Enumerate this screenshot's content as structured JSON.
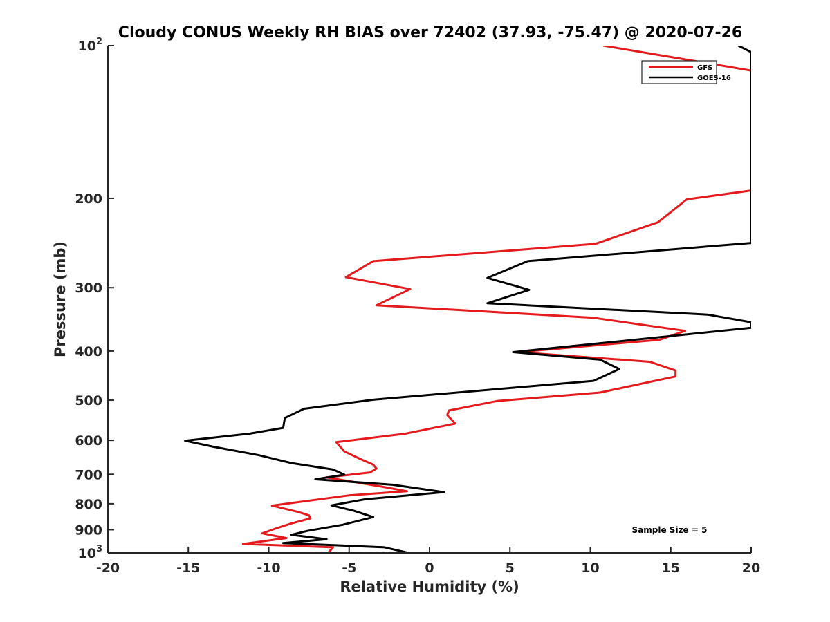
{
  "chart_data": {
    "type": "line",
    "title": "Cloudy CONUS Weekly RH BIAS over 72402 (37.93, -75.47) @ 2020-07-26",
    "xlabel": "Relative Humidity (%)",
    "ylabel": "Pressure (mb)",
    "xlim": [
      -20,
      20
    ],
    "ylim": [
      100,
      1000
    ],
    "y_scale": "log",
    "y_reversed": true,
    "grid": false,
    "legend_position": "top-right",
    "annotation": "Sample Size = 5",
    "x_ticks": [
      "-20",
      "-15",
      "-10",
      "-5",
      "0",
      "5",
      "10",
      "15",
      "20"
    ],
    "y_tick_values": [
      100,
      200,
      300,
      400,
      500,
      600,
      700,
      800,
      900,
      1000
    ],
    "y_tick_labels": {
      "t100": {
        "base": "10",
        "exp": "2"
      },
      "t200": "200",
      "t300": "300",
      "t400": "400",
      "t500": "500",
      "t600": "600",
      "t700": "700",
      "t800": "800",
      "t900": "900",
      "t1000": {
        "base": "10",
        "exp": "3"
      }
    },
    "series": [
      {
        "name": "GFS",
        "color": "#e41a1c",
        "points": [
          {
            "x": 10.8,
            "y": 100
          },
          {
            "x": 20.0,
            "y": 112
          },
          {
            "x": 20.0,
            "y": 193
          },
          {
            "x": 16.0,
            "y": 201
          },
          {
            "x": 14.2,
            "y": 223
          },
          {
            "x": 10.3,
            "y": 246
          },
          {
            "x": -3.5,
            "y": 266
          },
          {
            "x": -5.2,
            "y": 286
          },
          {
            "x": -1.2,
            "y": 302
          },
          {
            "x": -3.3,
            "y": 325
          },
          {
            "x": 10.2,
            "y": 344
          },
          {
            "x": 15.9,
            "y": 365
          },
          {
            "x": 14.3,
            "y": 380
          },
          {
            "x": 5.5,
            "y": 402
          },
          {
            "x": 13.7,
            "y": 420
          },
          {
            "x": 15.3,
            "y": 437
          },
          {
            "x": 15.3,
            "y": 449
          },
          {
            "x": 10.6,
            "y": 483
          },
          {
            "x": 4.2,
            "y": 502
          },
          {
            "x": 1.2,
            "y": 524
          },
          {
            "x": 1.1,
            "y": 535
          },
          {
            "x": 1.6,
            "y": 556
          },
          {
            "x": -1.5,
            "y": 582
          },
          {
            "x": -5.8,
            "y": 605
          },
          {
            "x": -5.3,
            "y": 631
          },
          {
            "x": -4.3,
            "y": 653
          },
          {
            "x": -3.5,
            "y": 670
          },
          {
            "x": -3.3,
            "y": 682
          },
          {
            "x": -3.7,
            "y": 694
          },
          {
            "x": -6.4,
            "y": 710
          },
          {
            "x": -3.0,
            "y": 740
          },
          {
            "x": -1.4,
            "y": 756
          },
          {
            "x": -5.0,
            "y": 770
          },
          {
            "x": -9.8,
            "y": 807
          },
          {
            "x": -8.2,
            "y": 830
          },
          {
            "x": -7.5,
            "y": 843
          },
          {
            "x": -7.4,
            "y": 855
          },
          {
            "x": -8.6,
            "y": 875
          },
          {
            "x": -9.6,
            "y": 896
          },
          {
            "x": -10.4,
            "y": 915
          },
          {
            "x": -8.9,
            "y": 935
          },
          {
            "x": -11.6,
            "y": 960
          },
          {
            "x": -6.0,
            "y": 975
          },
          {
            "x": -6.3,
            "y": 1000
          }
        ]
      },
      {
        "name": "GOES-16",
        "color": "#000000",
        "points": [
          {
            "x": 19.2,
            "y": 100
          },
          {
            "x": 20.0,
            "y": 103
          },
          {
            "x": 20.0,
            "y": 245
          },
          {
            "x": 6.1,
            "y": 266
          },
          {
            "x": 3.6,
            "y": 287
          },
          {
            "x": 6.2,
            "y": 303
          },
          {
            "x": 3.6,
            "y": 322
          },
          {
            "x": 17.3,
            "y": 339
          },
          {
            "x": 20.0,
            "y": 351
          },
          {
            "x": 20.0,
            "y": 360
          },
          {
            "x": 5.2,
            "y": 402
          },
          {
            "x": 10.6,
            "y": 416
          },
          {
            "x": 11.8,
            "y": 434
          },
          {
            "x": 10.2,
            "y": 458
          },
          {
            "x": -3.5,
            "y": 499
          },
          {
            "x": -7.8,
            "y": 520
          },
          {
            "x": -9.0,
            "y": 542
          },
          {
            "x": -9.1,
            "y": 567
          },
          {
            "x": -11.2,
            "y": 582
          },
          {
            "x": -15.2,
            "y": 601
          },
          {
            "x": -13.5,
            "y": 617
          },
          {
            "x": -10.6,
            "y": 642
          },
          {
            "x": -8.6,
            "y": 665
          },
          {
            "x": -6.0,
            "y": 685
          },
          {
            "x": -5.3,
            "y": 701
          },
          {
            "x": -7.1,
            "y": 716
          },
          {
            "x": -2.3,
            "y": 734
          },
          {
            "x": 0.9,
            "y": 759
          },
          {
            "x": -4.0,
            "y": 784
          },
          {
            "x": -6.1,
            "y": 806
          },
          {
            "x": -4.7,
            "y": 826
          },
          {
            "x": -3.5,
            "y": 850
          },
          {
            "x": -5.4,
            "y": 880
          },
          {
            "x": -7.6,
            "y": 905
          },
          {
            "x": -8.6,
            "y": 921
          },
          {
            "x": -6.4,
            "y": 940
          },
          {
            "x": -9.1,
            "y": 956
          },
          {
            "x": -2.8,
            "y": 975
          },
          {
            "x": -1.3,
            "y": 1000
          }
        ]
      }
    ]
  }
}
